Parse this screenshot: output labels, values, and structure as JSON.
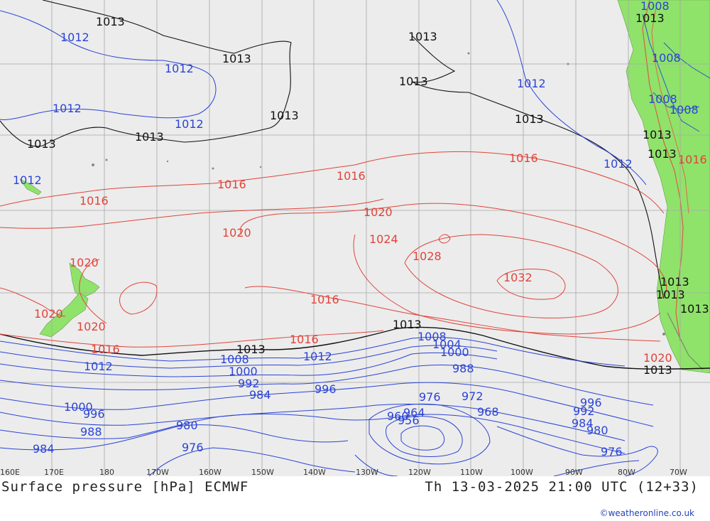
{
  "map": {
    "title": "Surface pressure [hPa] ECMWF",
    "valid_time": "Th 13-03-2025 21:00 UTC (12+33)",
    "credit": "©weatheronline.co.uk",
    "longitude_labels": [
      "160E",
      "170E",
      "180",
      "170W",
      "160W",
      "150W",
      "140W",
      "130W",
      "120W",
      "110W",
      "100W",
      "90W",
      "80W",
      "70W"
    ],
    "colors": {
      "ocean": "#ececec",
      "land": "#8fe36a",
      "low_isobar": "#2b44d6",
      "normal_isobar": "#111111",
      "high_isobar": "#e0443a",
      "grid": "#a8a8a8"
    },
    "isobar_labels": [
      {
        "text": "1013",
        "kind": "normal"
      },
      {
        "text": "1012",
        "kind": "low"
      },
      {
        "text": "1013",
        "kind": "normal"
      },
      {
        "text": "1012",
        "kind": "low"
      },
      {
        "text": "1013",
        "kind": "normal"
      },
      {
        "text": "1012",
        "kind": "low"
      },
      {
        "text": "1012",
        "kind": "low"
      },
      {
        "text": "1013",
        "kind": "normal"
      },
      {
        "text": "1013",
        "kind": "normal"
      },
      {
        "text": "1013",
        "kind": "normal"
      },
      {
        "text": "1013",
        "kind": "normal"
      },
      {
        "text": "1012",
        "kind": "low"
      },
      {
        "text": "1013",
        "kind": "normal"
      },
      {
        "text": "1016",
        "kind": "high"
      },
      {
        "text": "1012",
        "kind": "low"
      },
      {
        "text": "1016",
        "kind": "high"
      },
      {
        "text": "1016",
        "kind": "high"
      },
      {
        "text": "1016",
        "kind": "high"
      },
      {
        "text": "1020",
        "kind": "high"
      },
      {
        "text": "1020",
        "kind": "high"
      },
      {
        "text": "1024",
        "kind": "high"
      },
      {
        "text": "1028",
        "kind": "high"
      },
      {
        "text": "1032",
        "kind": "high"
      },
      {
        "text": "1020",
        "kind": "high"
      },
      {
        "text": "1020",
        "kind": "high"
      },
      {
        "text": "1020",
        "kind": "high"
      },
      {
        "text": "1016",
        "kind": "high"
      },
      {
        "text": "1016",
        "kind": "high"
      },
      {
        "text": "1016",
        "kind": "high"
      },
      {
        "text": "1013",
        "kind": "normal"
      },
      {
        "text": "1013",
        "kind": "normal"
      },
      {
        "text": "1012",
        "kind": "low"
      },
      {
        "text": "1012",
        "kind": "low"
      },
      {
        "text": "1008",
        "kind": "low"
      },
      {
        "text": "1008",
        "kind": "low"
      },
      {
        "text": "1004",
        "kind": "low"
      },
      {
        "text": "1000",
        "kind": "low"
      },
      {
        "text": "1000",
        "kind": "low"
      },
      {
        "text": "992",
        "kind": "low"
      },
      {
        "text": "984",
        "kind": "low"
      },
      {
        "text": "996",
        "kind": "low"
      },
      {
        "text": "988",
        "kind": "low"
      },
      {
        "text": "976",
        "kind": "low"
      },
      {
        "text": "972",
        "kind": "low"
      },
      {
        "text": "968",
        "kind": "low"
      },
      {
        "text": "964",
        "kind": "low"
      },
      {
        "text": "960",
        "kind": "low"
      },
      {
        "text": "956",
        "kind": "low"
      },
      {
        "text": "1000",
        "kind": "low"
      },
      {
        "text": "996",
        "kind": "low"
      },
      {
        "text": "988",
        "kind": "low"
      },
      {
        "text": "984",
        "kind": "low"
      },
      {
        "text": "980",
        "kind": "low"
      },
      {
        "text": "976",
        "kind": "low"
      },
      {
        "text": "996",
        "kind": "low"
      },
      {
        "text": "992",
        "kind": "low"
      },
      {
        "text": "984",
        "kind": "low"
      },
      {
        "text": "980",
        "kind": "low"
      },
      {
        "text": "976",
        "kind": "low"
      },
      {
        "text": "1008",
        "kind": "low"
      },
      {
        "text": "1013",
        "kind": "normal"
      },
      {
        "text": "1008",
        "kind": "low"
      },
      {
        "text": "1008",
        "kind": "low"
      },
      {
        "text": "1008",
        "kind": "low"
      },
      {
        "text": "1013",
        "kind": "normal"
      },
      {
        "text": "1013",
        "kind": "normal"
      },
      {
        "text": "1016",
        "kind": "high"
      },
      {
        "text": "1013",
        "kind": "normal"
      },
      {
        "text": "1013",
        "kind": "normal"
      },
      {
        "text": "1013",
        "kind": "normal"
      },
      {
        "text": "1020",
        "kind": "high"
      },
      {
        "text": "1013",
        "kind": "normal"
      },
      {
        "text": "1012",
        "kind": "low"
      }
    ]
  }
}
